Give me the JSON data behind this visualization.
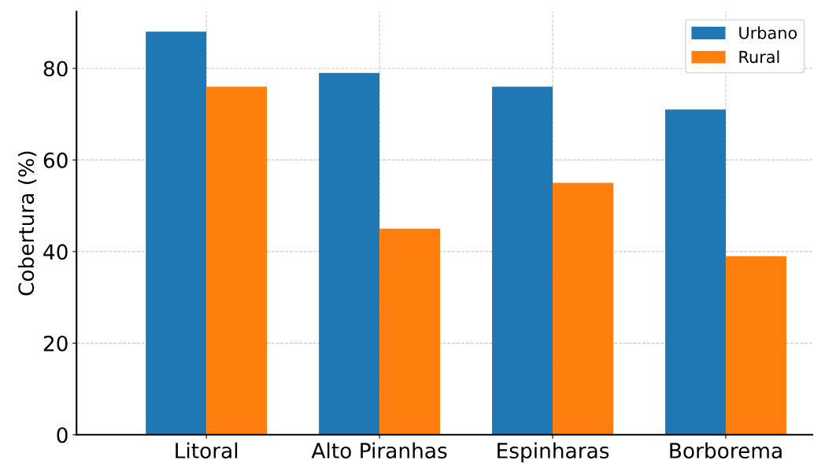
{
  "chart_data": {
    "type": "bar",
    "ylabel": "Cobertura (%)",
    "categories": [
      "Litoral",
      "Alto Piranhas",
      "Espinharas",
      "Borborema"
    ],
    "series": [
      {
        "name": "Urbano",
        "color": "#1f77b4",
        "values": [
          88,
          79,
          76,
          71
        ]
      },
      {
        "name": "Rural",
        "color": "#ff7f0e",
        "values": [
          76,
          45,
          55,
          39
        ]
      }
    ],
    "ylim": [
      0,
      92.4
    ],
    "yticks": [
      0,
      20,
      40,
      60,
      80
    ],
    "grid": true,
    "legend": "top right"
  }
}
